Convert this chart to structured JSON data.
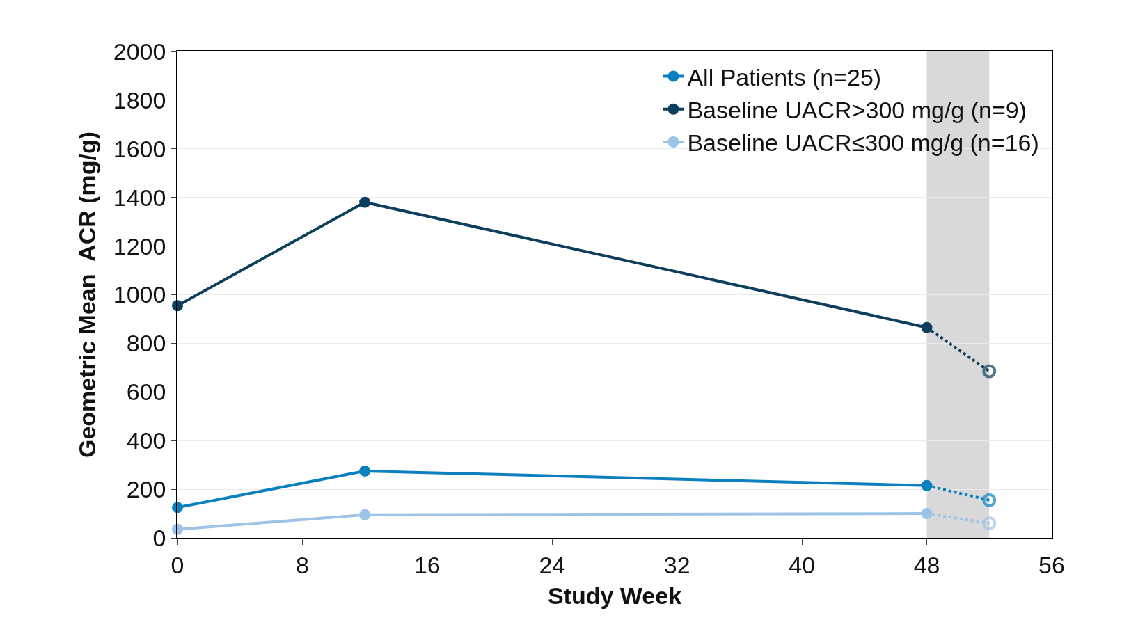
{
  "chart_data": {
    "type": "line",
    "xlabel": "Study Week",
    "ylabel": "Geometric Mean  ACR (mg/g)",
    "xlim": [
      0,
      56
    ],
    "xticks": [
      0,
      8,
      16,
      24,
      32,
      40,
      48,
      56
    ],
    "ylim": [
      0,
      2000
    ],
    "yticks": [
      0,
      200,
      400,
      600,
      800,
      1000,
      1200,
      1400,
      1600,
      1800,
      2000
    ],
    "grid": "y",
    "legend": "top right",
    "marker": "circle",
    "bands": [
      {
        "axis": "x",
        "from": 48,
        "to": 52,
        "color": "#d9d9d9"
      }
    ],
    "series": [
      {
        "name": "All Patients (n=25)",
        "color": "#0a80c0",
        "x": [
          0,
          12,
          48
        ],
        "values": [
          125,
          275,
          215
        ]
      },
      {
        "name": "Baseline UACR>300 mg/g (n=9)",
        "color": "#0d3f5c",
        "x": [
          0,
          12,
          48
        ],
        "values": [
          955,
          1380,
          865
        ]
      },
      {
        "name": "Baseline UACR≤300 mg/g (n=16)",
        "color": "#9dc3e6",
        "x": [
          0,
          12,
          48
        ],
        "values": [
          35,
          95,
          100
        ]
      },
      {
        "color": "#0a80c0",
        "x": [
          48,
          52
        ],
        "values": [
          215,
          155
        ],
        "line_style": "dotted"
      },
      {
        "color": "#0d3f5c",
        "x": [
          48,
          52
        ],
        "values": [
          865,
          685
        ],
        "line_style": "dotted"
      },
      {
        "color": "#9dc3e6",
        "x": [
          48,
          52
        ],
        "values": [
          100,
          60
        ],
        "line_style": "dotted"
      }
    ]
  }
}
